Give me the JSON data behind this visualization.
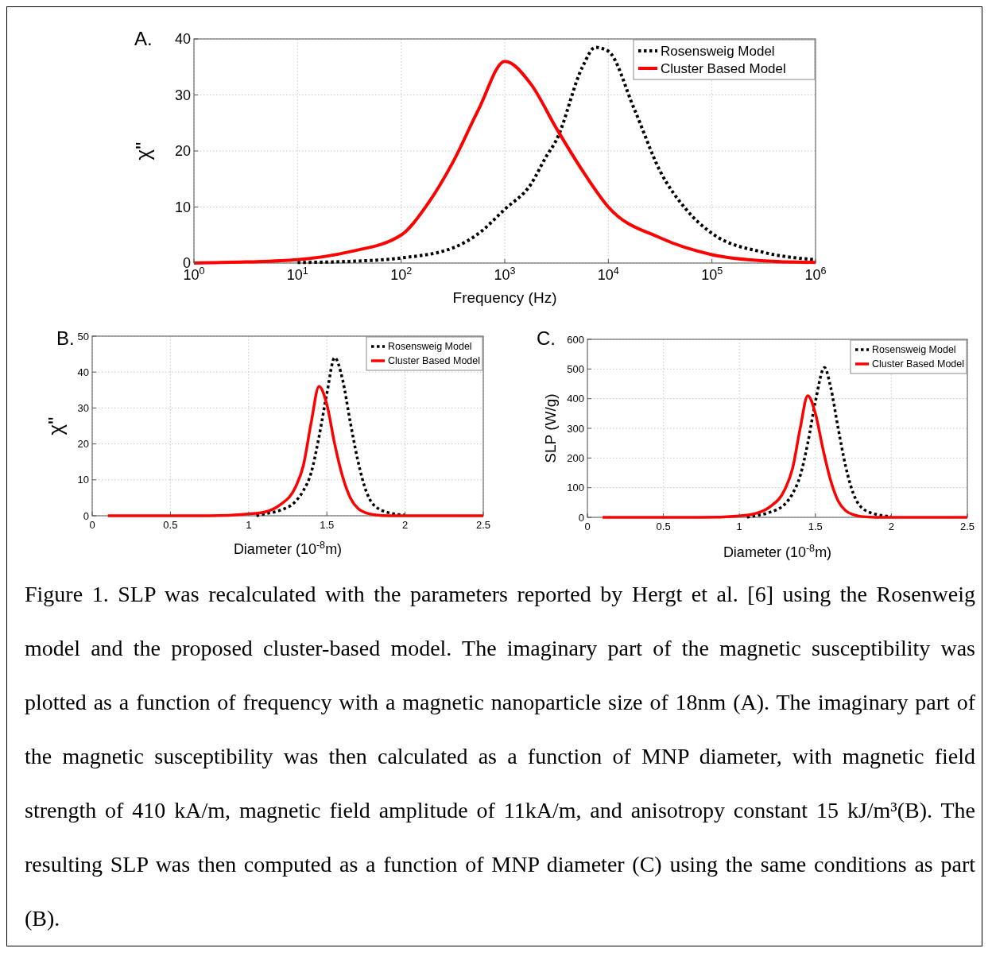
{
  "chart_data": [
    {
      "type": "line",
      "title": "A.",
      "xlabel": "Frequency (Hz)",
      "ylabel": "χ\"",
      "log": "x",
      "xlim": [
        1,
        1000000
      ],
      "xticks": [
        {
          "value": 1,
          "label": "10$^{0}$"
        },
        {
          "value": 10,
          "label": "10$^{1}$"
        },
        {
          "value": 100,
          "label": "10$^{2}$"
        },
        {
          "value": 1000,
          "label": "10$^{3}$"
        },
        {
          "value": 10000,
          "label": "10$^{4}$"
        },
        {
          "value": 100000,
          "label": "10$^{5}$"
        },
        {
          "value": 1000000,
          "label": "10$^{6}$"
        }
      ],
      "ylim": [
        0,
        40
      ],
      "yticks": [
        0,
        10,
        20,
        30,
        40
      ],
      "grid": true,
      "legend": "top right",
      "series": [
        {
          "name": "Rosensweig Model",
          "color": "#000000",
          "line_style": "dotted",
          "x": [
            10,
            31.6,
            100,
            316,
            562,
            1000,
            1778,
            2512,
            3162,
            5623,
            7500,
            10000,
            17783,
            31623,
            56234,
            100000,
            316228,
            1000000
          ],
          "values": [
            0.1,
            0.3,
            0.9,
            2.7,
            5.3,
            9.6,
            14,
            19,
            22,
            35,
            38.5,
            37.8,
            27.5,
            16.4,
            9.6,
            5.3,
            1.9,
            0.6
          ]
        },
        {
          "name": "Cluster Based Model",
          "color": "#ff0000",
          "line_style": "solid",
          "x": [
            1,
            3.16,
            10,
            31.6,
            100,
            178,
            316,
            562,
            1000,
            1778,
            3162,
            5623,
            10000,
            31623,
            100000,
            316228,
            1000000
          ],
          "values": [
            0,
            0.2,
            0.6,
            2,
            5,
            10.4,
            18,
            27.5,
            36,
            32,
            24,
            16.5,
            10,
            4.5,
            1.5,
            0.4,
            0.1
          ]
        }
      ]
    },
    {
      "type": "line",
      "title": "B.",
      "xlabel": "Diameter (10$^{-8}$m)",
      "ylabel": "χ\"",
      "xlim": [
        0,
        2.5
      ],
      "xticks": [
        0,
        0.5,
        1,
        1.5,
        2,
        2.5
      ],
      "ylim": [
        0,
        50
      ],
      "yticks": [
        0,
        10,
        20,
        30,
        40,
        50
      ],
      "grid": true,
      "legend": "top right",
      "series": [
        {
          "name": "Rosensweig Model",
          "color": "#000000",
          "line_style": "dotted",
          "x": [
            1.05,
            1.1,
            1.2,
            1.3,
            1.35,
            1.4,
            1.45,
            1.5,
            1.55,
            1.6,
            1.65,
            1.7,
            1.75,
            1.8,
            1.9,
            2.0
          ],
          "values": [
            0,
            0.5,
            1.5,
            4,
            7,
            12,
            22,
            34,
            44,
            38,
            26,
            15,
            7,
            3,
            0.8,
            0.2
          ]
        },
        {
          "name": "Cluster Based Model",
          "color": "#ff0000",
          "line_style": "solid",
          "x": [
            0.1,
            0.75,
            1.0,
            1.1,
            1.2,
            1.3,
            1.35,
            1.4,
            1.45,
            1.5,
            1.55,
            1.6,
            1.65,
            1.7,
            1.75,
            1.8,
            1.9,
            2.5
          ],
          "values": [
            0,
            0,
            0.5,
            1,
            3,
            8,
            14,
            26,
            36,
            31,
            20,
            11,
            5,
            2,
            0.8,
            0.3,
            0,
            0
          ]
        }
      ]
    },
    {
      "type": "line",
      "title": "C.",
      "xlabel": "Diameter (10$^{-8}$m)",
      "ylabel": "SLP (W/g)",
      "xlim": [
        0,
        2.5
      ],
      "xticks": [
        0,
        0.5,
        1,
        1.5,
        2,
        2.5
      ],
      "ylim": [
        0,
        600
      ],
      "yticks": [
        0,
        100,
        200,
        300,
        400,
        500,
        600
      ],
      "grid": true,
      "legend": "top right",
      "series": [
        {
          "name": "Rosensweig Model",
          "color": "#000000",
          "line_style": "dotted",
          "x": [
            1.05,
            1.1,
            1.2,
            1.3,
            1.35,
            1.4,
            1.45,
            1.5,
            1.56,
            1.6,
            1.65,
            1.7,
            1.75,
            1.8,
            1.9,
            2.0
          ],
          "values": [
            0,
            5,
            17,
            45,
            80,
            140,
            250,
            390,
            505,
            440,
            300,
            170,
            80,
            35,
            10,
            3
          ]
        },
        {
          "name": "Cluster Based Model",
          "color": "#ff0000",
          "line_style": "solid",
          "x": [
            0.1,
            0.75,
            1.0,
            1.1,
            1.2,
            1.3,
            1.35,
            1.4,
            1.45,
            1.5,
            1.55,
            1.6,
            1.65,
            1.7,
            1.75,
            1.8,
            1.9,
            2.5
          ],
          "values": [
            0,
            0,
            5,
            12,
            35,
            95,
            165,
            300,
            410,
            350,
            230,
            125,
            55,
            22,
            9,
            3,
            0,
            0
          ]
        }
      ],
      "annotations": [
        "Figure 1. SLP was recalculated with the parameters reported by Hergt et al. [6] using the Rosenweig model and the proposed cluster-based model. The imaginary part of the magnetic susceptibility was plotted as a function of frequency with a magnetic nanoparticle size of 18nm (A). The imaginary part of the magnetic susceptibility was then calculated as a function of MNP diameter, with magnetic field strength of 410 kA/m, magnetic field amplitude of 11kA/m, and anisotropy constant 15 kJ/m³(B). The resulting SLP was then computed as a function of MNP diameter (C) using the same conditions as part (B)."
      ]
    }
  ]
}
